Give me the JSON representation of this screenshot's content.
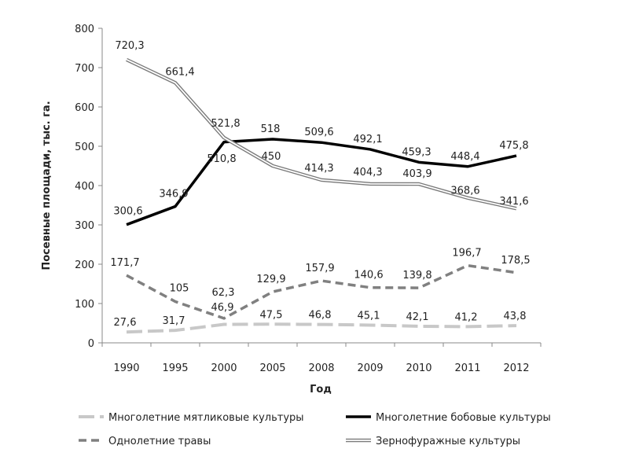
{
  "chart_data": {
    "type": "line",
    "title": "",
    "xlabel": "Год",
    "ylabel": "Посевные площади, тыс. га.",
    "categories": [
      "1990",
      "1995",
      "2000",
      "2005",
      "2008",
      "2009",
      "2010",
      "2011",
      "2012"
    ],
    "ylim": [
      0,
      800
    ],
    "yticks": [
      0,
      100,
      200,
      300,
      400,
      500,
      600,
      700,
      800
    ],
    "grid": false,
    "legend_position": "bottom",
    "series": [
      {
        "name": "Многолетние мятликовые культуры",
        "values": [
          27.6,
          31.7,
          46.9,
          47.5,
          46.8,
          45.1,
          42.1,
          41.2,
          43.8
        ],
        "labels": [
          "27,6",
          "31,7",
          "46,9",
          "47,5",
          "46,8",
          "45,1",
          "42,1",
          "41,2",
          "43,8"
        ],
        "color": "#c8c8c8",
        "style": "dashed-thick"
      },
      {
        "name": "Многолетние бобовые культуры",
        "values": [
          300.6,
          346.9,
          510.8,
          518,
          509.6,
          492.1,
          459.3,
          448.4,
          475.8
        ],
        "labels": [
          "300,6",
          "346,9",
          "510,8",
          "518",
          "509,6",
          "492,1",
          "459,3",
          "448,4",
          "475,8"
        ],
        "color": "#000000",
        "style": "solid-thick"
      },
      {
        "name": "Однолетние травы",
        "values": [
          171.7,
          105,
          62.3,
          129.9,
          157.9,
          140.6,
          139.8,
          196.7,
          178.5
        ],
        "labels": [
          "171,7",
          "105",
          "62,3",
          "129,9",
          "157,9",
          "140,6",
          "139,8",
          "196,7",
          "178,5"
        ],
        "color": "#808080",
        "style": "dashed"
      },
      {
        "name": "Зернофуражные культуры",
        "values": [
          720.3,
          661.4,
          521.8,
          450,
          414.3,
          404.3,
          403.9,
          368.6,
          341.6
        ],
        "labels": [
          "720,3",
          "661,4",
          "521,8",
          "450",
          "414,3",
          "404,3",
          "403,9",
          "368,6",
          "341,6"
        ],
        "color": "#7a7a7a",
        "style": "double"
      }
    ]
  }
}
